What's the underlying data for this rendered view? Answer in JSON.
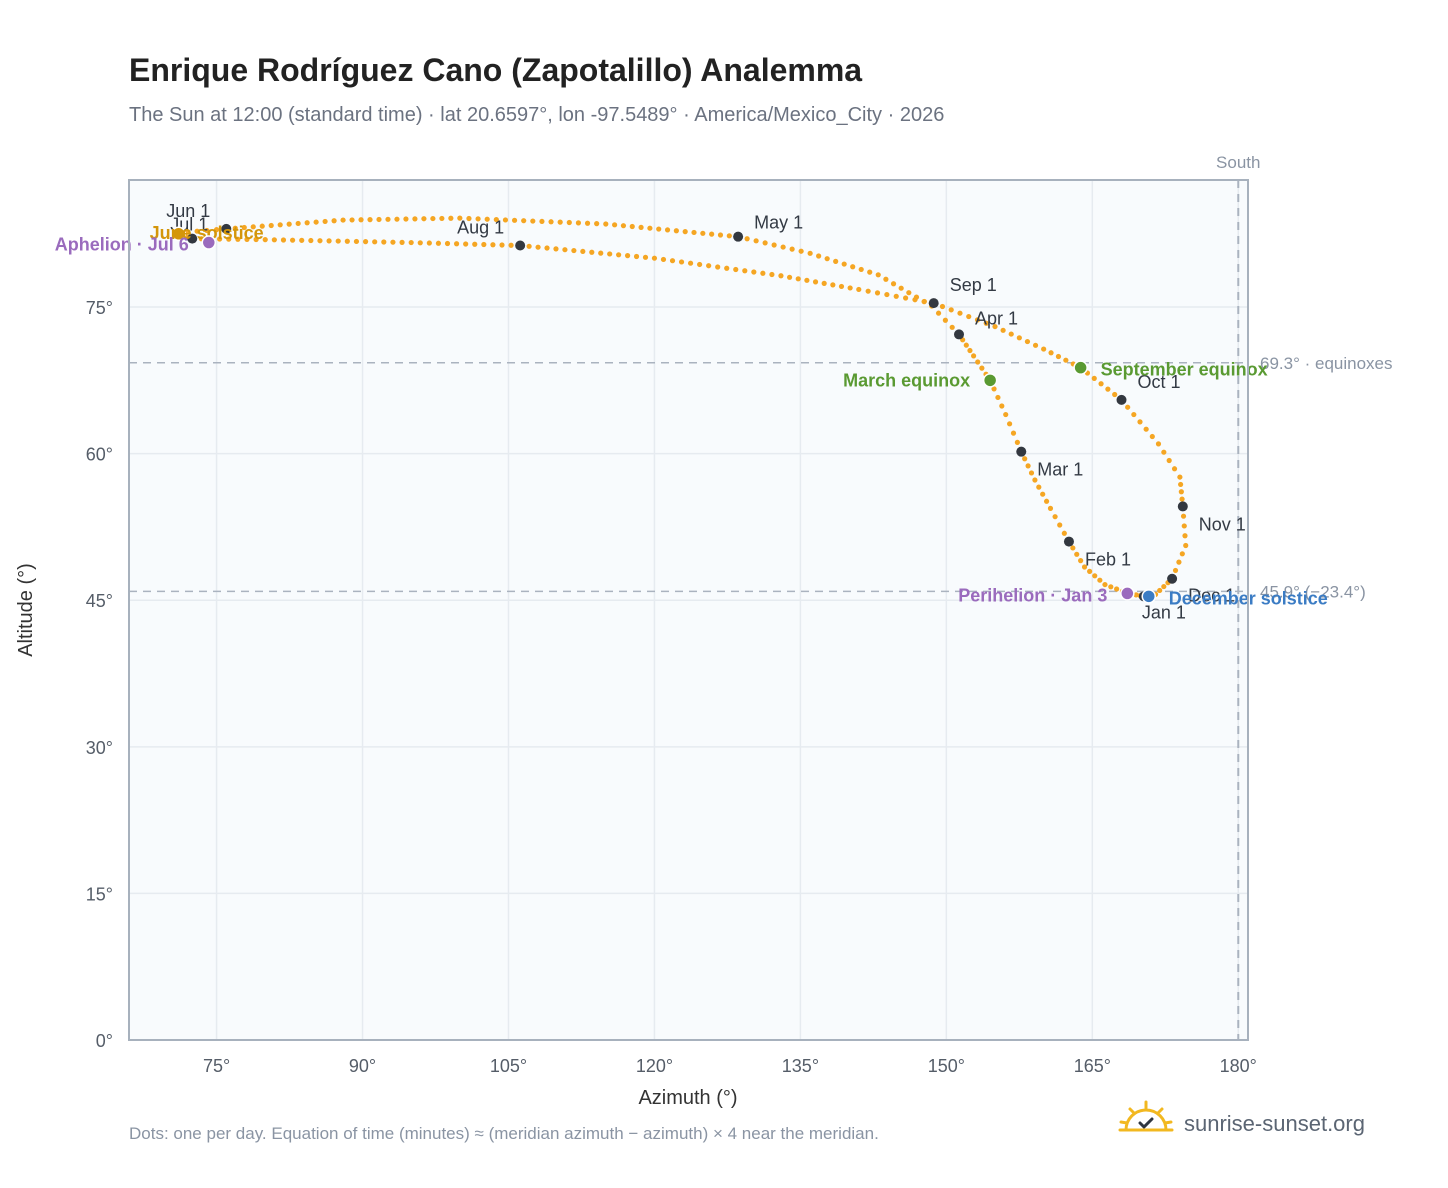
{
  "header": {
    "title": "Enrique Rodríguez Cano (Zapotalillo) Analemma",
    "subtitle": "The Sun at 12:00 (standard time) · lat 20.6597°, lon -97.5489° · America/Mexico_City · 2026"
  },
  "footer": {
    "note": "Dots: one per day. Equation of time (minutes) ≈ (meridian azimuth − azimuth) × 4 near the meridian.",
    "brand": "sunrise-sunset.org",
    "brand_icon": "sun-check-icon"
  },
  "colors": {
    "curve": "#f5a623",
    "month_dot": "#333840",
    "equinox": "#5a9a32",
    "june_solstice": "#d4960a",
    "december_solstice": "#3b7cc4",
    "apsis": "#9a6bbd",
    "reference": "#aab3bf",
    "grid": "#e6ebf0",
    "plot_bg": "#f8fbfd"
  },
  "chart_data": {
    "type": "scatter",
    "xlabel": "Azimuth (°)",
    "ylabel": "Altitude (°)",
    "xlim": [
      66,
      181
    ],
    "ylim": [
      0,
      88
    ],
    "xticks": [
      75,
      90,
      105,
      120,
      135,
      150,
      165,
      180
    ],
    "yticks": [
      0,
      15,
      30,
      45,
      60,
      75
    ],
    "tick_suffix": "°",
    "grid": true,
    "meridian": {
      "azimuth": 180,
      "label": "South"
    },
    "reference_lines": [
      {
        "altitude": 69.3,
        "label": "69.3° · equinoxes"
      },
      {
        "altitude": 45.9,
        "label": "45.9° (−23.4°)"
      }
    ],
    "months": [
      {
        "label": "Jan 1",
        "az": 170.3,
        "alt": 45.4
      },
      {
        "label": "Feb 1",
        "az": 162.6,
        "alt": 51.0
      },
      {
        "label": "Mar 1",
        "az": 157.7,
        "alt": 60.2
      },
      {
        "label": "Apr 1",
        "az": 151.3,
        "alt": 72.2
      },
      {
        "label": "May 1",
        "az": 128.6,
        "alt": 82.2
      },
      {
        "label": "Jun 1",
        "az": 76.0,
        "alt": 83.0
      },
      {
        "label": "Jul 1",
        "az": 72.5,
        "alt": 82.0
      },
      {
        "label": "Aug 1",
        "az": 106.2,
        "alt": 81.3
      },
      {
        "label": "Sep 1",
        "az": 148.7,
        "alt": 75.4
      },
      {
        "label": "Oct 1",
        "az": 168.0,
        "alt": 65.5
      },
      {
        "label": "Nov 1",
        "az": 174.3,
        "alt": 54.6
      },
      {
        "label": "Dec 1",
        "az": 173.2,
        "alt": 47.2
      }
    ],
    "events": [
      {
        "label": "March equinox",
        "az": 154.5,
        "alt": 67.5,
        "kind": "equinox"
      },
      {
        "label": "September equinox",
        "az": 163.8,
        "alt": 68.8,
        "kind": "equinox"
      },
      {
        "label": "June solstice",
        "az": 71.1,
        "alt": 82.5,
        "kind": "june_solstice"
      },
      {
        "label": "December solstice",
        "az": 170.8,
        "alt": 45.4,
        "kind": "december_solstice"
      },
      {
        "label": "Perihelion · Jan 3",
        "az": 168.6,
        "alt": 45.7,
        "kind": "apsis"
      },
      {
        "label": "Aphelion · Jul 6",
        "az": 74.2,
        "alt": 81.6,
        "kind": "apsis"
      }
    ],
    "path": [
      {
        "az": 170.3,
        "alt": 45.4
      },
      {
        "az": 168.7,
        "alt": 45.7
      },
      {
        "az": 166.3,
        "alt": 46.6
      },
      {
        "az": 164.2,
        "alt": 48.4
      },
      {
        "az": 162.6,
        "alt": 51.0
      },
      {
        "az": 160.7,
        "alt": 54.4
      },
      {
        "az": 159.1,
        "alt": 57.3
      },
      {
        "az": 157.7,
        "alt": 60.2
      },
      {
        "az": 156.1,
        "alt": 64.0
      },
      {
        "az": 154.5,
        "alt": 67.5
      },
      {
        "az": 152.8,
        "alt": 70.0
      },
      {
        "az": 151.3,
        "alt": 72.2
      },
      {
        "az": 148.5,
        "alt": 75.1
      },
      {
        "az": 143.0,
        "alt": 78.3
      },
      {
        "az": 136.0,
        "alt": 80.5
      },
      {
        "az": 128.6,
        "alt": 82.2
      },
      {
        "az": 115.0,
        "alt": 83.5
      },
      {
        "az": 100.0,
        "alt": 84.1
      },
      {
        "az": 88.0,
        "alt": 83.9
      },
      {
        "az": 76.0,
        "alt": 83.0
      },
      {
        "az": 71.0,
        "alt": 82.6
      },
      {
        "az": 72.5,
        "alt": 82.0
      },
      {
        "az": 80.0,
        "alt": 81.9
      },
      {
        "az": 95.0,
        "alt": 81.6
      },
      {
        "az": 106.2,
        "alt": 81.3
      },
      {
        "az": 120.0,
        "alt": 80.0
      },
      {
        "az": 133.0,
        "alt": 78.2
      },
      {
        "az": 141.0,
        "alt": 76.8
      },
      {
        "az": 148.7,
        "alt": 75.4
      },
      {
        "az": 155.0,
        "alt": 73.0
      },
      {
        "az": 160.0,
        "alt": 70.7
      },
      {
        "az": 163.8,
        "alt": 68.8
      },
      {
        "az": 168.0,
        "alt": 65.5
      },
      {
        "az": 171.8,
        "alt": 61.0
      },
      {
        "az": 174.0,
        "alt": 57.6
      },
      {
        "az": 174.3,
        "alt": 54.6
      },
      {
        "az": 174.6,
        "alt": 50.6
      },
      {
        "az": 173.2,
        "alt": 47.2
      },
      {
        "az": 171.5,
        "alt": 45.6
      },
      {
        "az": 170.3,
        "alt": 45.4
      }
    ]
  }
}
